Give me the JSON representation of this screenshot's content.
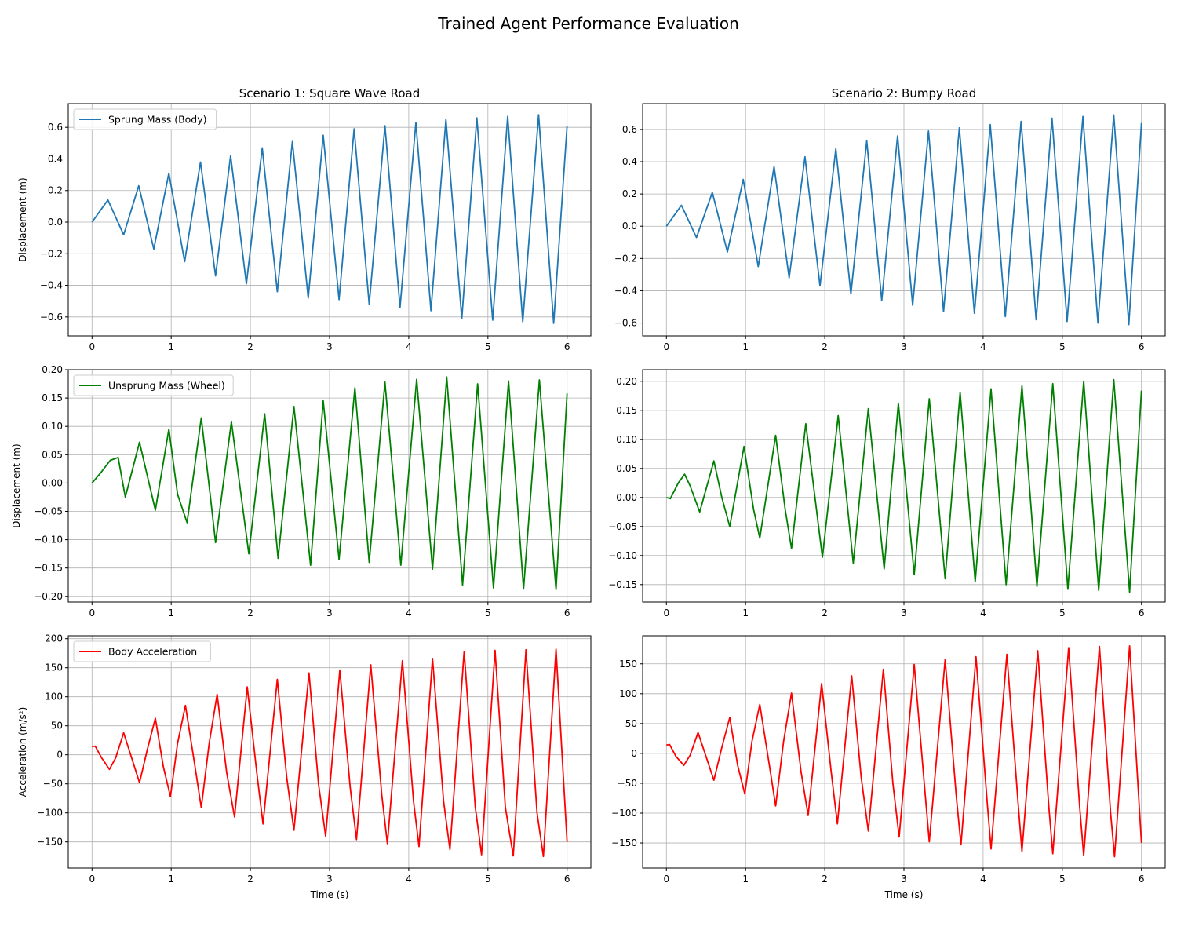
{
  "figure": {
    "title": "Trained Agent Performance Evaluation"
  },
  "colors": {
    "body": "#1f77b4",
    "wheel": "#008000",
    "accel": "#ff0000",
    "grid": "#b0b0b0",
    "axis": "#000000"
  },
  "chart_data": [
    {
      "type": "line",
      "title": "Scenario 1: Square Wave Road",
      "xlabel": "",
      "ylabel": "Displacement (m)",
      "xlim": [
        -0.3,
        6.3
      ],
      "ylim": [
        -0.72,
        0.75
      ],
      "xticks": [
        0,
        1,
        2,
        3,
        4,
        5,
        6
      ],
      "yticks": [
        -0.6,
        -0.4,
        -0.2,
        0.0,
        0.2,
        0.4,
        0.6
      ],
      "ytick_labels": [
        "−0.6",
        "−0.4",
        "−0.2",
        "0.0",
        "0.2",
        "0.4",
        "0.6"
      ],
      "grid": true,
      "legend_position": "upper left",
      "series": [
        {
          "name": "Sprung Mass (Body)",
          "color": "#1f77b4",
          "x": [
            0,
            0.2,
            0.4,
            0.59,
            0.78,
            0.97,
            1.17,
            1.37,
            1.56,
            1.75,
            1.95,
            2.15,
            2.34,
            2.53,
            2.73,
            2.92,
            3.12,
            3.31,
            3.5,
            3.7,
            3.89,
            4.09,
            4.28,
            4.47,
            4.67,
            4.86,
            5.06,
            5.25,
            5.44,
            5.64,
            5.83,
            6.0
          ],
          "y": [
            0,
            0.14,
            -0.08,
            0.23,
            -0.17,
            0.31,
            -0.25,
            0.38,
            -0.34,
            0.42,
            -0.39,
            0.47,
            -0.44,
            0.51,
            -0.48,
            0.55,
            -0.49,
            0.59,
            -0.52,
            0.61,
            -0.54,
            0.63,
            -0.56,
            0.65,
            -0.61,
            0.66,
            -0.62,
            0.67,
            -0.63,
            0.68,
            -0.64,
            0.61
          ]
        }
      ]
    },
    {
      "type": "line",
      "title": "Scenario 2: Bumpy Road",
      "xlabel": "",
      "ylabel": "",
      "xlim": [
        -0.3,
        6.3
      ],
      "ylim": [
        -0.68,
        0.76
      ],
      "xticks": [
        0,
        1,
        2,
        3,
        4,
        5,
        6
      ],
      "yticks": [
        -0.6,
        -0.4,
        -0.2,
        0.0,
        0.2,
        0.4,
        0.6
      ],
      "ytick_labels": [
        "−0.6",
        "−0.4",
        "−0.2",
        "0.0",
        "0.2",
        "0.4",
        "0.6"
      ],
      "grid": true,
      "legend_position": "",
      "series": [
        {
          "color": "#1f77b4",
          "x": [
            0,
            0.19,
            0.38,
            0.58,
            0.77,
            0.97,
            1.16,
            1.36,
            1.55,
            1.75,
            1.94,
            2.14,
            2.33,
            2.53,
            2.72,
            2.92,
            3.11,
            3.31,
            3.5,
            3.7,
            3.89,
            4.09,
            4.28,
            4.48,
            4.67,
            4.87,
            5.06,
            5.26,
            5.45,
            5.65,
            5.84,
            6.0
          ],
          "y": [
            0,
            0.13,
            -0.07,
            0.21,
            -0.16,
            0.29,
            -0.25,
            0.37,
            -0.32,
            0.43,
            -0.37,
            0.48,
            -0.42,
            0.53,
            -0.46,
            0.56,
            -0.49,
            0.59,
            -0.53,
            0.61,
            -0.54,
            0.63,
            -0.56,
            0.65,
            -0.58,
            0.67,
            -0.59,
            0.68,
            -0.6,
            0.69,
            -0.61,
            0.64
          ]
        }
      ]
    },
    {
      "type": "line",
      "title": "",
      "xlabel": "",
      "ylabel": "Displacement (m)",
      "xlim": [
        -0.3,
        6.3
      ],
      "ylim": [
        -0.21,
        0.2
      ],
      "xticks": [
        0,
        1,
        2,
        3,
        4,
        5,
        6
      ],
      "yticks": [
        -0.2,
        -0.15,
        -0.1,
        -0.05,
        0.0,
        0.05,
        0.1,
        0.15,
        0.2
      ],
      "ytick_labels": [
        "−0.20",
        "−0.15",
        "−0.10",
        "−0.05",
        "0.00",
        "0.05",
        "0.10",
        "0.15",
        "0.20"
      ],
      "grid": true,
      "legend_position": "upper left",
      "series": [
        {
          "name": "Unsprung Mass (Wheel)",
          "color": "#008000",
          "x": [
            0,
            0.12,
            0.23,
            0.33,
            0.42,
            0.6,
            0.72,
            0.8,
            0.97,
            1.08,
            1.2,
            1.38,
            1.5,
            1.56,
            1.76,
            1.98,
            2.18,
            2.35,
            2.55,
            2.76,
            2.92,
            3.12,
            3.32,
            3.5,
            3.7,
            3.9,
            4.1,
            4.3,
            4.48,
            4.68,
            4.87,
            5.07,
            5.26,
            5.45,
            5.65,
            5.86,
            6.0
          ],
          "y": [
            0,
            0.02,
            0.04,
            0.045,
            -0.025,
            0.072,
            0.0,
            -0.048,
            0.095,
            -0.02,
            -0.07,
            0.115,
            -0.03,
            -0.105,
            0.108,
            -0.125,
            0.122,
            -0.133,
            0.135,
            -0.145,
            0.145,
            -0.135,
            0.168,
            -0.14,
            0.178,
            -0.145,
            0.183,
            -0.152,
            0.187,
            -0.18,
            0.175,
            -0.185,
            0.18,
            -0.187,
            0.182,
            -0.188,
            0.158
          ]
        }
      ]
    },
    {
      "type": "line",
      "title": "",
      "xlabel": "",
      "ylabel": "",
      "xlim": [
        -0.3,
        6.3
      ],
      "ylim": [
        -0.18,
        0.22
      ],
      "xticks": [
        0,
        1,
        2,
        3,
        4,
        5,
        6
      ],
      "yticks": [
        -0.15,
        -0.1,
        -0.05,
        0.0,
        0.05,
        0.1,
        0.15,
        0.2
      ],
      "ytick_labels": [
        "−0.15",
        "−0.10",
        "−0.05",
        "0.00",
        "0.05",
        "0.10",
        "0.15",
        "0.20"
      ],
      "grid": true,
      "legend_position": "",
      "series": [
        {
          "color": "#008000",
          "x": [
            0,
            0.05,
            0.15,
            0.23,
            0.3,
            0.42,
            0.6,
            0.7,
            0.8,
            0.98,
            1.1,
            1.18,
            1.38,
            1.5,
            1.58,
            1.76,
            1.97,
            2.17,
            2.36,
            2.55,
            2.75,
            2.93,
            3.13,
            3.32,
            3.52,
            3.71,
            3.9,
            4.1,
            4.29,
            4.49,
            4.68,
            4.88,
            5.07,
            5.27,
            5.46,
            5.65,
            5.85,
            6.0
          ],
          "y": [
            0,
            -0.002,
            0.025,
            0.04,
            0.02,
            -0.025,
            0.063,
            0.0,
            -0.05,
            0.088,
            -0.02,
            -0.07,
            0.107,
            -0.02,
            -0.088,
            0.127,
            -0.103,
            0.141,
            -0.113,
            0.153,
            -0.123,
            0.162,
            -0.133,
            0.17,
            -0.14,
            0.181,
            -0.145,
            0.187,
            -0.15,
            0.192,
            -0.153,
            0.196,
            -0.158,
            0.2,
            -0.16,
            0.203,
            -0.163,
            0.184
          ]
        }
      ]
    },
    {
      "type": "line",
      "title": "",
      "xlabel": "Time (s)",
      "ylabel": "Acceleration (m/s²)",
      "xlim": [
        -0.3,
        6.3
      ],
      "ylim": [
        -195,
        205
      ],
      "xticks": [
        0,
        1,
        2,
        3,
        4,
        5,
        6
      ],
      "yticks": [
        -150,
        -100,
        -50,
        0,
        50,
        100,
        150,
        200
      ],
      "ytick_labels": [
        "−150",
        "−100",
        "−50",
        "0",
        "50",
        "100",
        "150",
        "200"
      ],
      "grid": true,
      "legend_position": "upper left",
      "series": [
        {
          "name": "Body Acceleration",
          "color": "#ff0000",
          "x": [
            0,
            0.04,
            0.12,
            0.22,
            0.3,
            0.4,
            0.5,
            0.6,
            0.7,
            0.8,
            0.9,
            0.99,
            1.08,
            1.18,
            1.3,
            1.38,
            1.48,
            1.58,
            1.7,
            1.8,
            1.96,
            2.08,
            2.16,
            2.34,
            2.46,
            2.55,
            2.74,
            2.86,
            2.95,
            3.13,
            3.26,
            3.34,
            3.52,
            3.66,
            3.73,
            3.92,
            4.06,
            4.13,
            4.3,
            4.44,
            4.52,
            4.7,
            4.84,
            4.92,
            5.09,
            5.22,
            5.32,
            5.48,
            5.62,
            5.7,
            5.86,
            6.0
          ],
          "y": [
            14,
            15,
            -5,
            -25,
            -5,
            38,
            -5,
            -48,
            10,
            63,
            -20,
            -72,
            20,
            85,
            -20,
            -91,
            20,
            104,
            -30,
            -107,
            117,
            -30,
            -119,
            130,
            -40,
            -130,
            141,
            -50,
            -140,
            146,
            -55,
            -146,
            155,
            -70,
            -153,
            162,
            -80,
            -158,
            166,
            -80,
            -163,
            178,
            -90,
            -172,
            180,
            -90,
            -174,
            181,
            -100,
            -175,
            182,
            -150
          ]
        }
      ]
    },
    {
      "type": "line",
      "title": "",
      "xlabel": "Time (s)",
      "ylabel": "",
      "xlim": [
        -0.3,
        6.3
      ],
      "ylim": [
        -192,
        197
      ],
      "xticks": [
        0,
        1,
        2,
        3,
        4,
        5,
        6
      ],
      "yticks": [
        -150,
        -100,
        -50,
        0,
        50,
        100,
        150
      ],
      "ytick_labels": [
        "−150",
        "−100",
        "−50",
        "0",
        "50",
        "100",
        "150"
      ],
      "grid": true,
      "legend_position": "",
      "series": [
        {
          "color": "#ff0000",
          "x": [
            0,
            0.04,
            0.12,
            0.22,
            0.3,
            0.4,
            0.5,
            0.6,
            0.7,
            0.8,
            0.9,
            0.99,
            1.08,
            1.18,
            1.3,
            1.38,
            1.48,
            1.58,
            1.7,
            1.79,
            1.96,
            2.08,
            2.16,
            2.34,
            2.46,
            2.55,
            2.74,
            2.86,
            2.94,
            3.13,
            3.26,
            3.32,
            3.52,
            3.66,
            3.72,
            3.91,
            4.05,
            4.1,
            4.3,
            4.44,
            4.49,
            4.69,
            4.83,
            4.88,
            5.08,
            5.22,
            5.27,
            5.47,
            5.61,
            5.66,
            5.85,
            6.0
          ],
          "y": [
            14,
            15,
            -5,
            -20,
            -3,
            35,
            -5,
            -45,
            10,
            60,
            -20,
            -68,
            20,
            82,
            -20,
            -88,
            20,
            101,
            -30,
            -104,
            117,
            -30,
            -118,
            130,
            -40,
            -130,
            141,
            -50,
            -140,
            149,
            -55,
            -148,
            157,
            -70,
            -153,
            162,
            -80,
            -160,
            166,
            -80,
            -164,
            172,
            -90,
            -168,
            177,
            -90,
            -171,
            179,
            -100,
            -173,
            180,
            -150
          ]
        }
      ]
    }
  ]
}
